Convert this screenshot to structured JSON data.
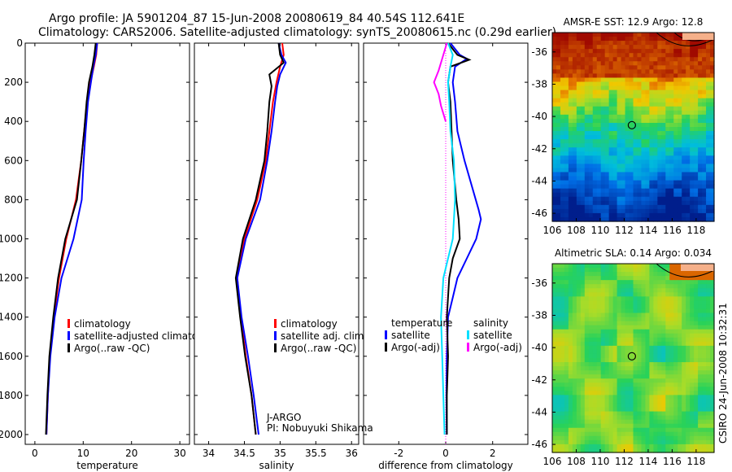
{
  "header": {
    "line1": "Argo profile: JA 5901204_87 15-Jun-2008 20080619_84 40.54S 112.641E",
    "line2": "Climatology: CARS2006. Satellite-adjusted climatology: synTS_20080615.nc (0.29d earlier)"
  },
  "credit": {
    "agency": "J-ARGO",
    "pi": "PI: Nobuyuki Shikama",
    "stamp": "CSIRO 24-Jun-2008 10:32:31"
  },
  "colors": {
    "climatology": "#ff0000",
    "satellite": "#0000ff",
    "argo": "#000000",
    "sat_salinity": "#00e0ff",
    "argo_salinity": "#ff00ff"
  },
  "chart_data": [
    {
      "type": "line",
      "id": "temperature",
      "xlabel": "temperature",
      "xlim": [
        -2,
        32
      ],
      "ylim": [
        0,
        2050
      ],
      "x_ticks": [
        0,
        10,
        20,
        30
      ],
      "y_ticks": [
        0,
        200,
        400,
        600,
        800,
        1000,
        1200,
        1400,
        1600,
        1800,
        2000
      ],
      "legend": [
        "climatology",
        "satellite-adjusted climatolog",
        "Argo(..raw -QC)"
      ],
      "series": [
        {
          "name": "climatology",
          "color": "#ff0000",
          "points": [
            [
              12.9,
              0
            ],
            [
              12.7,
              60
            ],
            [
              12.2,
              120
            ],
            [
              11.5,
              200
            ],
            [
              10.8,
              300
            ],
            [
              10.2,
              450
            ],
            [
              9.6,
              600
            ],
            [
              8.5,
              800
            ],
            [
              6.5,
              1000
            ],
            [
              5.0,
              1200
            ],
            [
              3.9,
              1400
            ],
            [
              3.1,
              1600
            ],
            [
              2.7,
              1800
            ],
            [
              2.4,
              2000
            ]
          ]
        },
        {
          "name": "satellite-adjusted climatolog",
          "color": "#0000ff",
          "points": [
            [
              12.9,
              0
            ],
            [
              12.6,
              60
            ],
            [
              12.1,
              120
            ],
            [
              11.6,
              200
            ],
            [
              11.0,
              300
            ],
            [
              10.5,
              450
            ],
            [
              10.1,
              600
            ],
            [
              9.7,
              800
            ],
            [
              8.0,
              1000
            ],
            [
              5.5,
              1200
            ],
            [
              4.1,
              1400
            ],
            [
              3.2,
              1600
            ],
            [
              2.7,
              1800
            ],
            [
              2.4,
              2000
            ]
          ]
        },
        {
          "name": "Argo(..raw -QC)",
          "color": "#000000",
          "points": [
            [
              12.6,
              0
            ],
            [
              12.3,
              60
            ],
            [
              11.9,
              120
            ],
            [
              11.2,
              200
            ],
            [
              10.7,
              300
            ],
            [
              10.2,
              450
            ],
            [
              9.6,
              600
            ],
            [
              8.7,
              800
            ],
            [
              6.3,
              1000
            ],
            [
              4.8,
              1200
            ],
            [
              3.8,
              1400
            ],
            [
              3.0,
              1600
            ],
            [
              2.6,
              1800
            ],
            [
              2.3,
              2000
            ]
          ]
        }
      ]
    },
    {
      "type": "line",
      "id": "salinity",
      "xlabel": "salinity",
      "xlim": [
        33.8,
        36.1
      ],
      "ylim": [
        0,
        2050
      ],
      "x_ticks": [
        34,
        34.5,
        35,
        35.5,
        36
      ],
      "y_ticks": [
        0,
        200,
        400,
        600,
        800,
        1000,
        1200,
        1400,
        1600,
        1800,
        2000
      ],
      "legend": [
        "climatology",
        "satellite adj. clim.",
        "Argo(..raw -QC)"
      ],
      "series": [
        {
          "name": "climatology",
          "color": "#ff0000",
          "points": [
            [
              35.03,
              0
            ],
            [
              35.05,
              60
            ],
            [
              35.0,
              120
            ],
            [
              34.95,
              200
            ],
            [
              34.9,
              300
            ],
            [
              34.85,
              450
            ],
            [
              34.8,
              600
            ],
            [
              34.68,
              800
            ],
            [
              34.5,
              1000
            ],
            [
              34.4,
              1200
            ],
            [
              34.45,
              1400
            ],
            [
              34.52,
              1600
            ],
            [
              34.6,
              1800
            ],
            [
              34.66,
              2000
            ]
          ]
        },
        {
          "name": "satellite adj. clim.",
          "color": "#0000ff",
          "points": [
            [
              34.98,
              0
            ],
            [
              35.02,
              60
            ],
            [
              35.08,
              100
            ],
            [
              35.0,
              160
            ],
            [
              34.96,
              220
            ],
            [
              34.93,
              300
            ],
            [
              34.88,
              450
            ],
            [
              34.82,
              600
            ],
            [
              34.72,
              800
            ],
            [
              34.52,
              1000
            ],
            [
              34.4,
              1200
            ],
            [
              34.46,
              1400
            ],
            [
              34.55,
              1600
            ],
            [
              34.63,
              1800
            ],
            [
              34.7,
              2000
            ]
          ]
        },
        {
          "name": "Argo(..raw -QC)",
          "color": "#000000",
          "points": [
            [
              34.98,
              0
            ],
            [
              35.0,
              60
            ],
            [
              35.05,
              100
            ],
            [
              34.85,
              160
            ],
            [
              34.88,
              220
            ],
            [
              34.85,
              300
            ],
            [
              34.82,
              450
            ],
            [
              34.78,
              600
            ],
            [
              34.66,
              800
            ],
            [
              34.48,
              1000
            ],
            [
              34.38,
              1200
            ],
            [
              34.44,
              1400
            ],
            [
              34.51,
              1600
            ],
            [
              34.6,
              1800
            ],
            [
              34.66,
              2000
            ]
          ]
        }
      ]
    },
    {
      "type": "line",
      "id": "difference",
      "xlabel": "difference from climatology",
      "xlim": [
        -3.5,
        3.5
      ],
      "ylim": [
        0,
        2050
      ],
      "x_ticks": [
        -2,
        0,
        2
      ],
      "y_ticks": [
        0,
        200,
        400,
        600,
        800,
        1000,
        1200,
        1400,
        1600,
        1800,
        2000
      ],
      "legend_titles": [
        "temperature",
        "salinity"
      ],
      "legend": [
        "satellite",
        "Argo(-adj)",
        "satellite",
        "Argo(-adj)"
      ],
      "series": [
        {
          "name": "temperature satellite",
          "color": "#0000ff",
          "points": [
            [
              0.2,
              0
            ],
            [
              0.6,
              60
            ],
            [
              0.9,
              80
            ],
            [
              0.4,
              120
            ],
            [
              0.3,
              200
            ],
            [
              0.4,
              300
            ],
            [
              0.5,
              450
            ],
            [
              0.8,
              600
            ],
            [
              1.4,
              850
            ],
            [
              1.5,
              900
            ],
            [
              1.3,
              1000
            ],
            [
              0.9,
              1100
            ],
            [
              0.5,
              1200
            ],
            [
              0.3,
              1300
            ],
            [
              0.1,
              1400
            ],
            [
              0.05,
              1600
            ],
            [
              0.03,
              1800
            ],
            [
              0.05,
              2000
            ]
          ]
        },
        {
          "name": "temperature Argo(-adj)",
          "color": "#000000",
          "points": [
            [
              0.1,
              0
            ],
            [
              0.5,
              60
            ],
            [
              1.0,
              85
            ],
            [
              0.2,
              120
            ],
            [
              0.1,
              200
            ],
            [
              0.2,
              300
            ],
            [
              0.25,
              450
            ],
            [
              0.3,
              600
            ],
            [
              0.45,
              800
            ],
            [
              0.55,
              900
            ],
            [
              0.6,
              1000
            ],
            [
              0.3,
              1100
            ],
            [
              0.15,
              1200
            ],
            [
              0.05,
              1400
            ],
            [
              0.1,
              1600
            ],
            [
              0.05,
              1800
            ],
            [
              0.05,
              2000
            ]
          ]
        },
        {
          "name": "salinity satellite",
          "color": "#00e0ff",
          "points": [
            [
              0.1,
              0
            ],
            [
              0.3,
              60
            ],
            [
              0.2,
              120
            ],
            [
              0.1,
              200
            ],
            [
              0.15,
              300
            ],
            [
              0.2,
              450
            ],
            [
              0.35,
              600
            ],
            [
              0.4,
              800
            ],
            [
              0.3,
              1000
            ],
            [
              -0.1,
              1200
            ],
            [
              -0.2,
              1400
            ],
            [
              -0.15,
              1600
            ],
            [
              -0.1,
              1800
            ],
            [
              -0.05,
              2000
            ]
          ]
        },
        {
          "name": "salinity Argo(-adj)",
          "color": "#ff00ff",
          "points": [
            [
              0.05,
              0
            ],
            [
              -0.1,
              60
            ],
            [
              -0.3,
              140
            ],
            [
              -0.5,
              200
            ],
            [
              -0.3,
              260
            ],
            [
              -0.2,
              320
            ],
            [
              0.0,
              400
            ]
          ]
        }
      ]
    }
  ],
  "maps": [
    {
      "id": "sst",
      "title": "AMSR-E SST: 12.9 Argo: 12.8",
      "x_ticks": [
        106,
        108,
        110,
        112,
        114,
        116,
        118
      ],
      "y_ticks": [
        -36,
        -38,
        -40,
        -42,
        -44,
        -46
      ],
      "xlim": [
        106,
        119.5
      ],
      "ylim": [
        -46.5,
        -34.8
      ],
      "marker": [
        112.641,
        -40.54
      ]
    },
    {
      "id": "sla",
      "title": "Altimetric SLA: 0.14 Argo: 0.034",
      "x_ticks": [
        106,
        108,
        110,
        112,
        114,
        116,
        118
      ],
      "y_ticks": [
        -36,
        -38,
        -40,
        -42,
        -44,
        -46
      ],
      "xlim": [
        106,
        119.5
      ],
      "ylim": [
        -46.5,
        -34.8
      ],
      "marker": [
        112.641,
        -40.54
      ]
    }
  ]
}
